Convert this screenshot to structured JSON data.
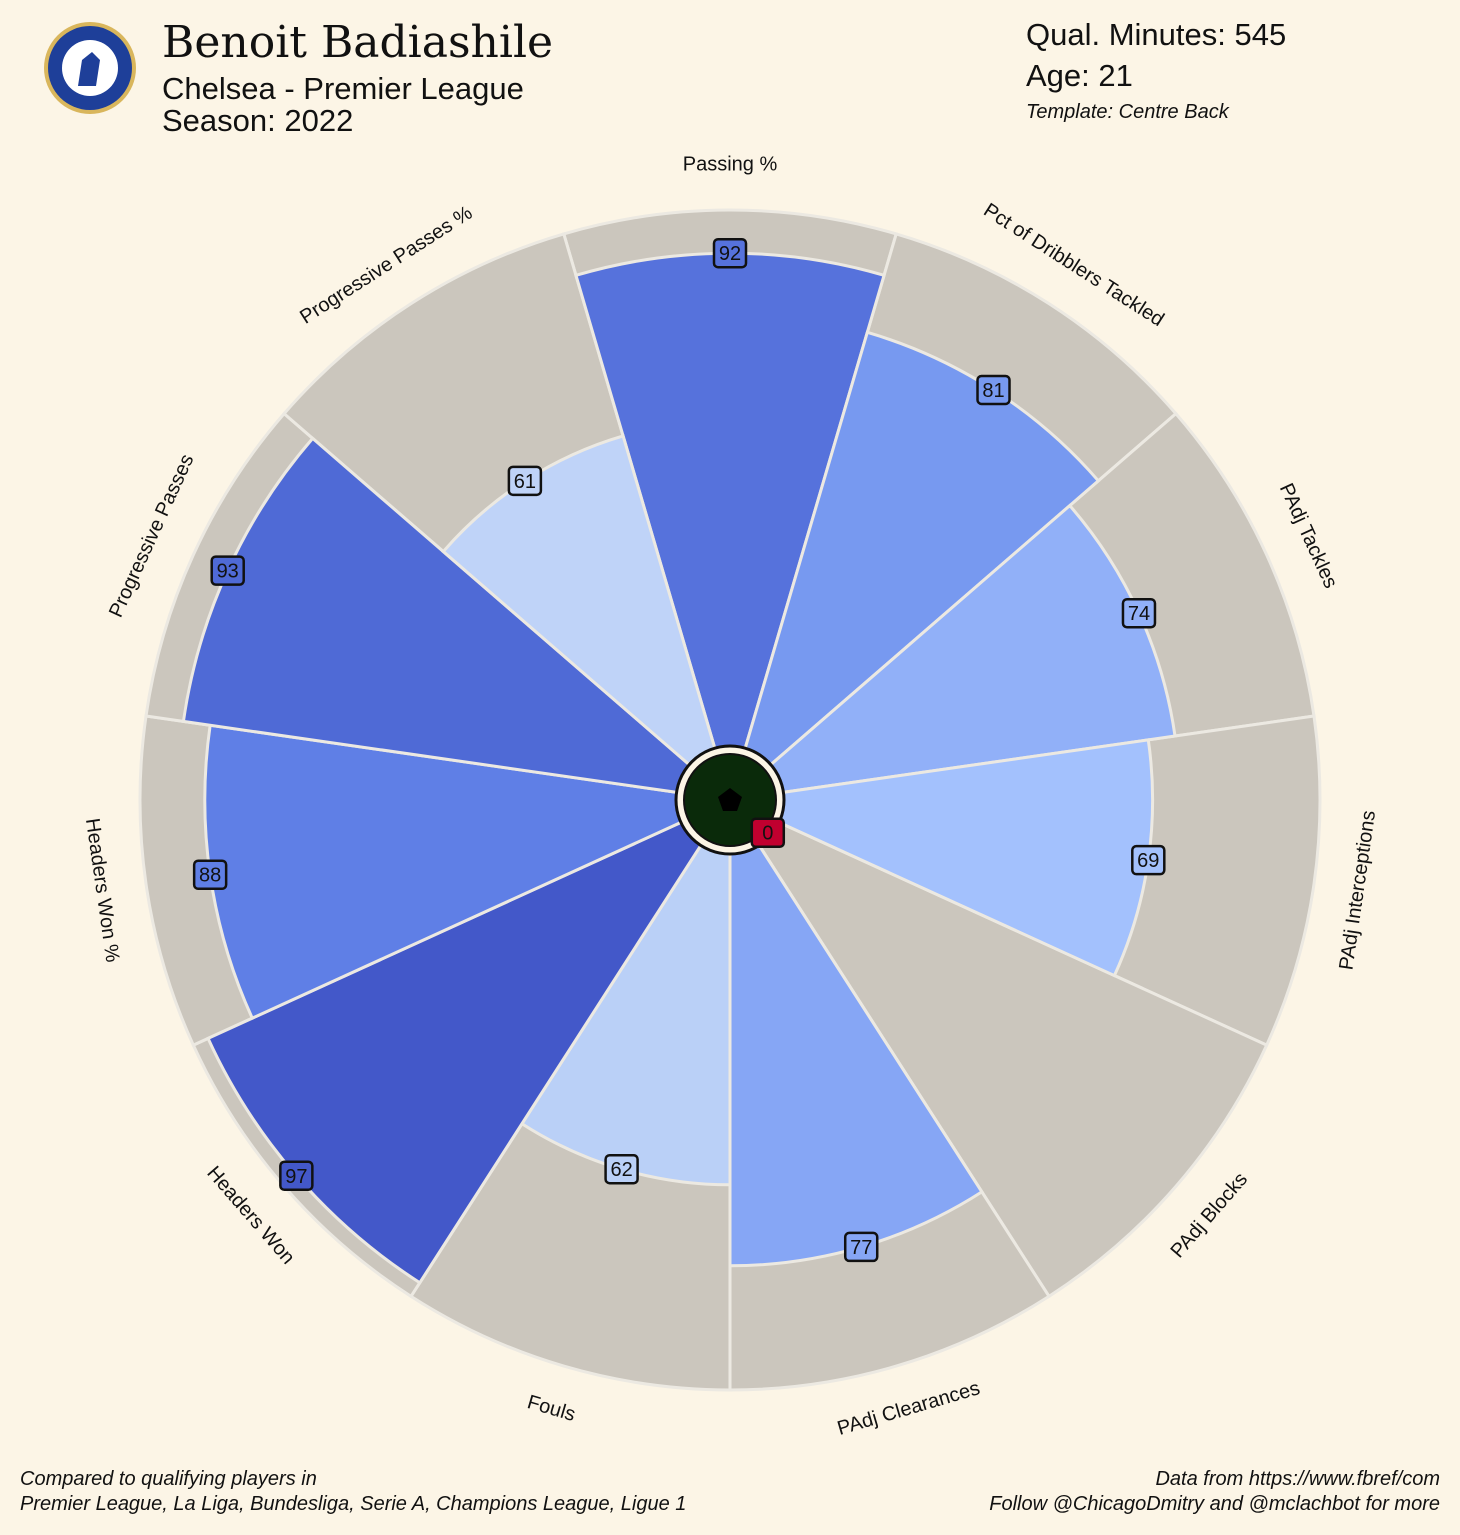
{
  "chart_data": {
    "type": "pizza",
    "title": "Benoit Badiashile",
    "subtitle": "Chelsea - Premier League",
    "season": "Season: 2022",
    "minutes": "Qual. Minutes: 545",
    "age": "Age: 21",
    "template": "Template: Centre Back",
    "footer_left": [
      "Compared to qualifying players in",
      "Premier League, La Liga, Bundesliga, Serie A, Champions League, Ligue 1"
    ],
    "footer_right": [
      "Data from https://www.fbref/com",
      "Follow @ChicagoDmitry and @mclachbot for more"
    ],
    "categories": [
      "Passing %",
      "Pct of Dribblers Tackled",
      "PAdj Tackles",
      "PAdj Interceptions",
      "PAdj Blocks",
      "PAdj Clearances",
      "Fouls",
      "Headers Won",
      "Headers Won %",
      "Progressive Passes",
      "Progressive Passes %"
    ],
    "values": [
      92,
      81,
      74,
      69,
      0,
      77,
      62,
      97,
      88,
      93,
      61
    ],
    "colors": [
      "#5672dc",
      "#7799f0",
      "#91b0f8",
      "#a3c1fd",
      "#c0002f",
      "#86a6f5",
      "#bad0f7",
      "#4358c9",
      "#5f7fe6",
      "#4f6ad6",
      "#bfd3f8"
    ],
    "background_color": "#cbc6bd",
    "ylim": [
      0,
      100
    ]
  }
}
